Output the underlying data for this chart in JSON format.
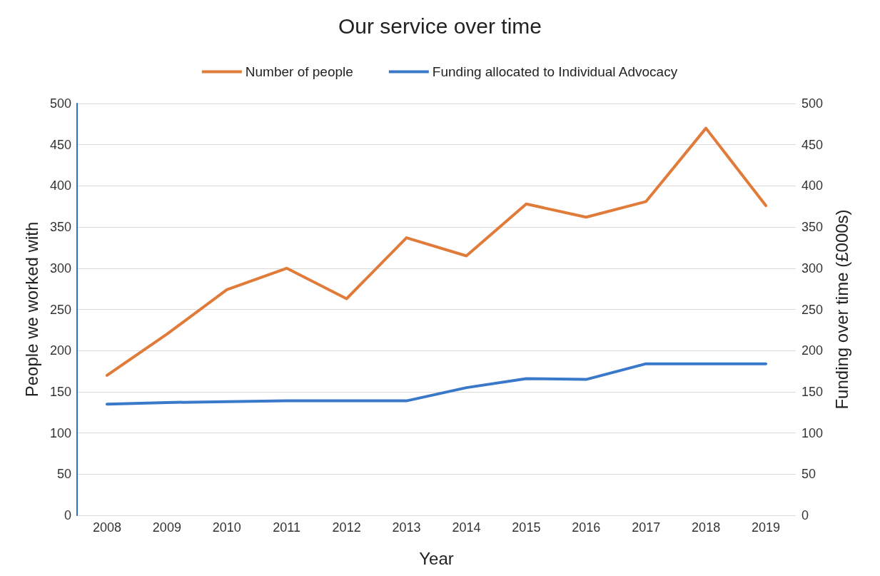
{
  "chart_data": {
    "type": "line",
    "title": "Our service over time",
    "xlabel": "Year",
    "ylabel": "People we worked with",
    "y2label": "Funding over time (£000s)",
    "categories": [
      "2008",
      "2009",
      "2010",
      "2011",
      "2012",
      "2013",
      "2014",
      "2015",
      "2016",
      "2017",
      "2018",
      "2019"
    ],
    "series": [
      {
        "name": "Number of people",
        "color": "#e07b39",
        "values": [
          170,
          220,
          274,
          300,
          263,
          337,
          315,
          378,
          362,
          381,
          470,
          376
        ]
      },
      {
        "name": "Funding allocated to Individual Advocacy",
        "color": "#3a78c9",
        "axis": "y2",
        "values": [
          135,
          137,
          138,
          139,
          139,
          139,
          155,
          166,
          165,
          184,
          184,
          184
        ]
      }
    ],
    "ylim": [
      0,
      500
    ],
    "yticks": [
      0,
      50,
      100,
      150,
      200,
      250,
      300,
      350,
      400,
      450,
      500
    ],
    "y2lim": [
      0,
      500
    ],
    "y2ticks": [
      0,
      50,
      100,
      150,
      200,
      250,
      300,
      350,
      400,
      450,
      500
    ],
    "grid": "y",
    "legend": "top",
    "marker": "none",
    "line_style": "solid"
  }
}
